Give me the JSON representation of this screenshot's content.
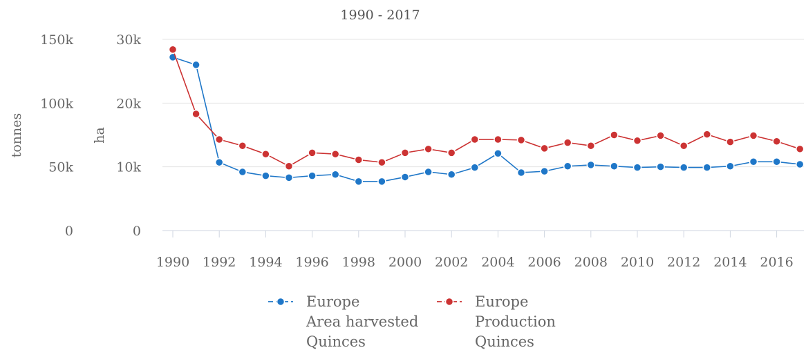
{
  "chart_data": {
    "type": "line",
    "subtitle": "1990 - 2017",
    "x": [
      1990,
      1991,
      1992,
      1993,
      1994,
      1995,
      1996,
      1997,
      1998,
      1999,
      2000,
      2001,
      2002,
      2003,
      2004,
      2005,
      2006,
      2007,
      2008,
      2009,
      2010,
      2011,
      2012,
      2013,
      2014,
      2015,
      2016,
      2017
    ],
    "x_ticks": [
      "1990",
      "1992",
      "1994",
      "1996",
      "1998",
      "2000",
      "2002",
      "2004",
      "2006",
      "2008",
      "2010",
      "2012",
      "2014",
      "2016"
    ],
    "y_left": {
      "label": "tonnes",
      "ticks": [
        "0",
        "50k",
        "100k",
        "150k"
      ],
      "ylim": [
        0,
        150000
      ]
    },
    "y_right": {
      "label": "ha",
      "ticks": [
        "0",
        "10k",
        "20k",
        "30k"
      ],
      "ylim": [
        0,
        30000
      ]
    },
    "grid": true,
    "legend_position": "bottom",
    "series": [
      {
        "name_lines": [
          "Europe",
          "Area harvested",
          "Quinces"
        ],
        "axis": "ha",
        "color": "#1f77c8",
        "values": [
          27200,
          26000,
          10700,
          9200,
          8600,
          8300,
          8600,
          8800,
          7700,
          7700,
          8400,
          9200,
          8800,
          9900,
          12100,
          9100,
          9300,
          10100,
          10300,
          10100,
          9900,
          10000,
          9900,
          9900,
          10100,
          10800,
          10800,
          10400
        ]
      },
      {
        "name_lines": [
          "Europe",
          "Production",
          "Quinces"
        ],
        "axis": "tonnes",
        "color": "#cc3333",
        "values": [
          142000,
          91500,
          71500,
          66500,
          60000,
          50500,
          61000,
          60000,
          55500,
          53500,
          61000,
          64000,
          61000,
          71500,
          71500,
          71000,
          64500,
          69000,
          66500,
          75000,
          70500,
          74500,
          66500,
          75500,
          69500,
          74500,
          70000,
          64000
        ]
      }
    ]
  }
}
